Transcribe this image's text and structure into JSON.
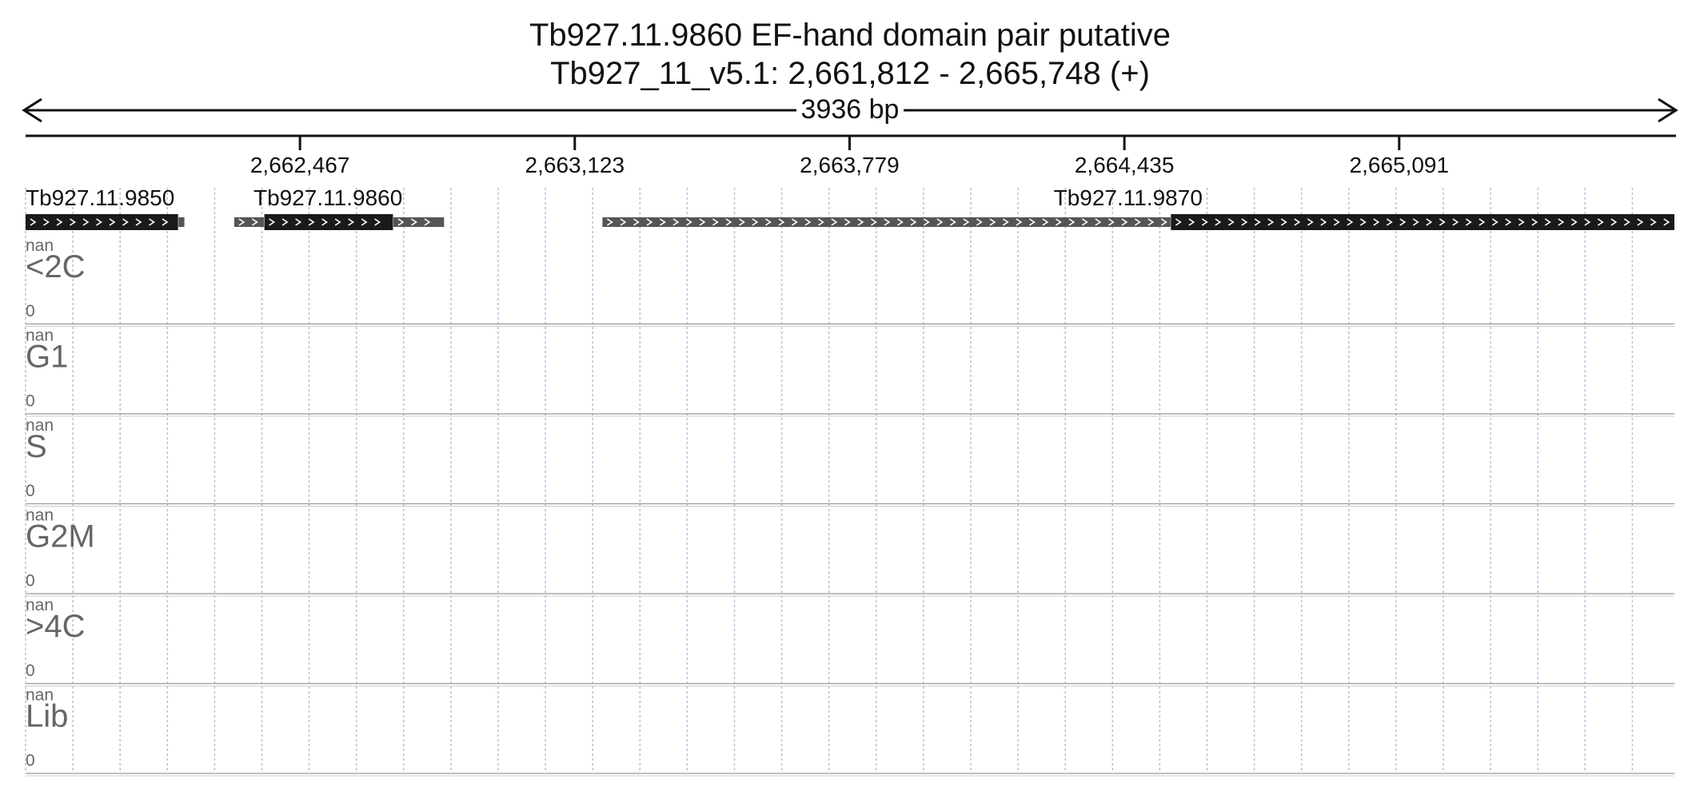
{
  "title": {
    "line1": "Tb927.11.9860  EF-hand domain pair  putative",
    "line2": "Tb927_11_v5.1: 2,661,812 - 2,665,748 (+)"
  },
  "span_label": "3936 bp",
  "region": {
    "start": 2661812,
    "end": 2665748,
    "strand": "+"
  },
  "ruler": {
    "ticks": [
      {
        "pos": 2662467,
        "label": "2,662,467"
      },
      {
        "pos": 2663123,
        "label": "2,663,123"
      },
      {
        "pos": 2663779,
        "label": "2,663,779"
      },
      {
        "pos": 2664435,
        "label": "2,664,435"
      },
      {
        "pos": 2665091,
        "label": "2,665,091"
      }
    ]
  },
  "genes": [
    {
      "name": "Tb927.11.9850",
      "label_pos": 2661812,
      "utr": [
        {
          "start": 2662177,
          "end": 2662191
        }
      ],
      "cds": [
        {
          "start": 2661812,
          "end": 2662176
        }
      ]
    },
    {
      "name": "Tb927.11.9860",
      "label_pos": 2662356,
      "utr": [
        {
          "start": 2662310,
          "end": 2662381
        },
        {
          "start": 2662690,
          "end": 2662811
        }
      ],
      "cds": [
        {
          "start": 2662382,
          "end": 2662689
        }
      ]
    },
    {
      "name": "Tb927.11.9870",
      "label_pos": 2664266,
      "utr": [
        {
          "start": 2663189,
          "end": 2664545
        }
      ],
      "cds": [
        {
          "start": 2664546,
          "end": 2665748
        }
      ]
    }
  ],
  "tracks": [
    {
      "label": "<2C",
      "max": "nan",
      "min": "0"
    },
    {
      "label": "G1",
      "max": "nan",
      "min": "0"
    },
    {
      "label": "S",
      "max": "nan",
      "min": "0"
    },
    {
      "label": "G2M",
      "max": "nan",
      "min": "0"
    },
    {
      "label": ">4C",
      "max": "nan",
      "min": "0"
    },
    {
      "label": "Lib",
      "max": "nan",
      "min": "0"
    }
  ],
  "colors": {
    "cds": "#1a1a1a",
    "utr": "#555555",
    "grid": "#a9c4e0",
    "separator": "#999999",
    "track_label": "#666666"
  }
}
